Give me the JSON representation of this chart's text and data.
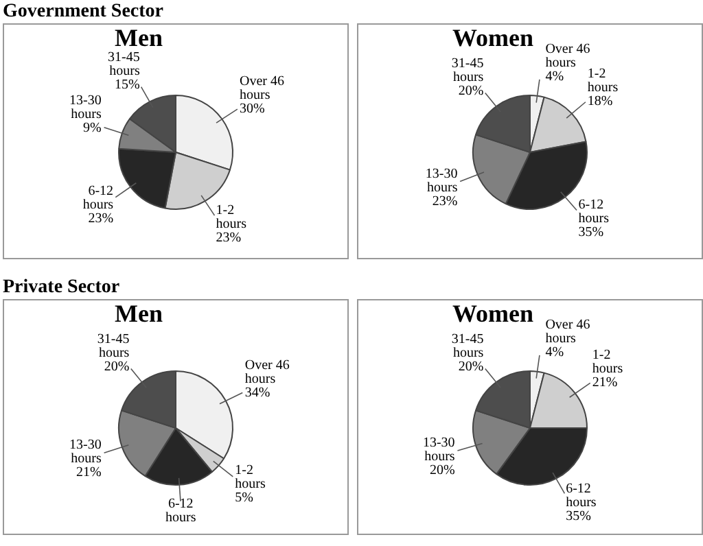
{
  "chart_data": [
    {
      "type": "pie",
      "title": "Men",
      "annotations": [
        "Government Sector"
      ],
      "categories": [
        "Over 46 hours",
        "1-2 hours",
        "6-12 hours",
        "13-30 hours",
        "31-45 hours"
      ],
      "values": [
        30,
        23,
        23,
        9,
        15
      ],
      "value_labels": [
        "30%",
        "23%",
        "23%",
        "9%",
        "15%"
      ],
      "colors": [
        "#f0f0f0",
        "#cfcfcf",
        "#262626",
        "#808080",
        "#4d4d4d"
      ],
      "legend": false
    },
    {
      "type": "pie",
      "title": "Women",
      "categories": [
        "Over 46 hours",
        "1-2 hours",
        "6-12 hours",
        "13-30 hours",
        "31-45 hours"
      ],
      "values": [
        4,
        18,
        35,
        23,
        20
      ],
      "value_labels": [
        "4%",
        "18%",
        "35%",
        "23%",
        "20%"
      ],
      "colors": [
        "#f0f0f0",
        "#cfcfcf",
        "#262626",
        "#808080",
        "#4d4d4d"
      ],
      "legend": false
    },
    {
      "type": "pie",
      "title": "Men",
      "annotations": [
        "Private Sector"
      ],
      "categories": [
        "Over 46 hours",
        "1-2 hours",
        "6-12 hours",
        "13-30 hours",
        "31-45 hours"
      ],
      "values": [
        34,
        5,
        20,
        21,
        20
      ],
      "value_labels": [
        "34%",
        "5%",
        null,
        "21%",
        "20%"
      ],
      "colors": [
        "#f0f0f0",
        "#cfcfcf",
        "#262626",
        "#808080",
        "#4d4d4d"
      ],
      "legend": false
    },
    {
      "type": "pie",
      "title": "Women",
      "categories": [
        "Over 46 hours",
        "1-2 hours",
        "6-12 hours",
        "13-30 hours",
        "31-45 hours"
      ],
      "values": [
        4,
        21,
        35,
        20,
        20
      ],
      "value_labels": [
        "4%",
        "21%",
        "35%",
        "20%",
        "20%"
      ],
      "colors": [
        "#f0f0f0",
        "#cfcfcf",
        "#262626",
        "#808080",
        "#4d4d4d"
      ],
      "legend": false
    }
  ]
}
